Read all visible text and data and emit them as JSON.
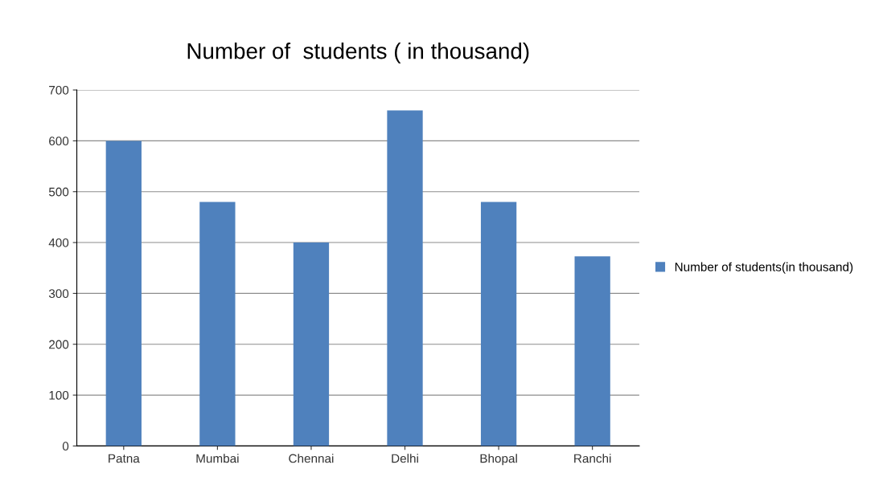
{
  "chart_data": {
    "type": "bar",
    "title": "Number of  students ( in thousand)",
    "categories": [
      "Patna",
      "Mumbai",
      "Chennai",
      "Delhi",
      "Bhopal",
      "Ranchi"
    ],
    "series": [
      {
        "name": "Number of students(in thousand)",
        "color": "#4f81bd",
        "values": [
          600,
          480,
          400,
          660,
          480,
          373
        ]
      }
    ],
    "ylim": [
      0,
      700
    ],
    "yticks": [
      0,
      100,
      200,
      300,
      400,
      500,
      600,
      700
    ],
    "grid": "y",
    "legend": "right"
  }
}
